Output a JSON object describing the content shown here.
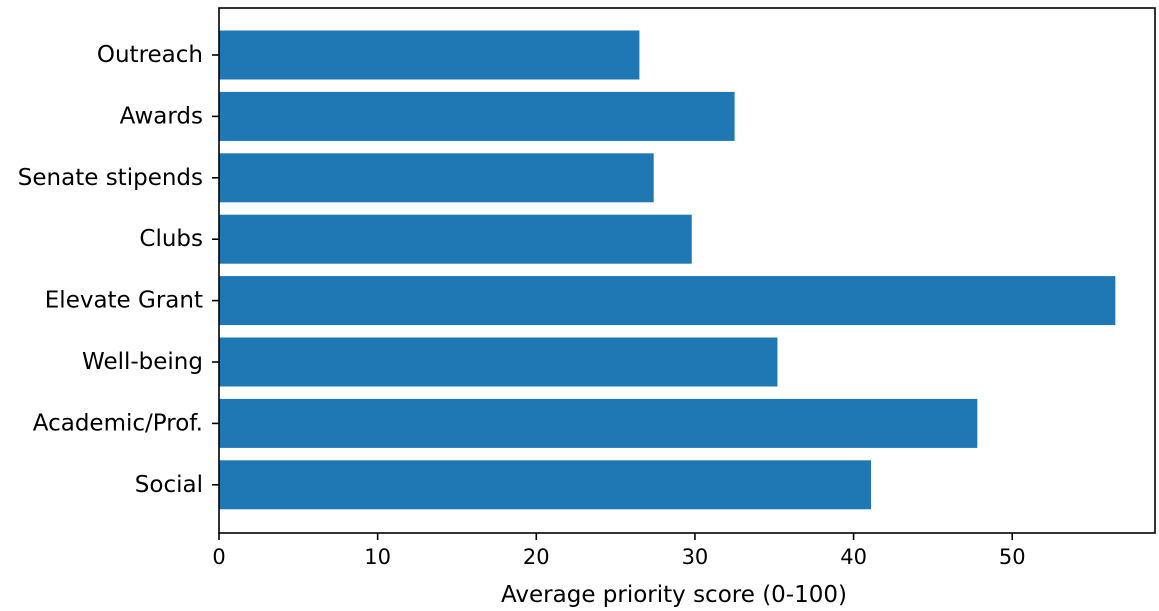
{
  "chart_data": {
    "type": "bar",
    "orientation": "horizontal",
    "categories": [
      "Outreach",
      "Awards",
      "Senate stipends",
      "Clubs",
      "Elevate Grant",
      "Well-being",
      "Academic/Prof.",
      "Social"
    ],
    "values": [
      26.5,
      32.5,
      27.4,
      29.8,
      56.5,
      35.2,
      47.8,
      41.1
    ],
    "xlabel": "Average priority score (0-100)",
    "ylabel": "",
    "title": "",
    "xlim": [
      0,
      59
    ],
    "xticks": [
      0,
      10,
      20,
      30,
      40,
      50
    ],
    "xtick_labels": [
      "0",
      "10",
      "20",
      "30",
      "40",
      "50"
    ],
    "grid": false,
    "bar_color": "#1f77b4"
  }
}
